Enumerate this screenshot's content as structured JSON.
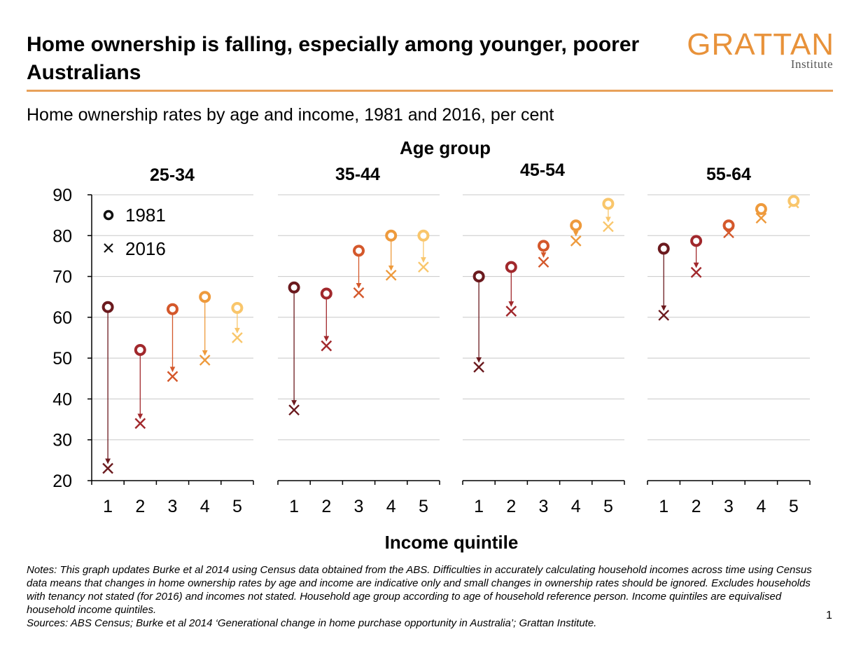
{
  "title": "Home ownership is falling, especially among younger, poorer Australians",
  "logo": {
    "main": "GRATTAN",
    "sub": "Institute"
  },
  "subtitle": "Home ownership rates by age and income, 1981 and 2016, per cent",
  "notes": [
    "Notes: This graph updates Burke et al 2014 using Census data obtained from the ABS. Difficulties in accurately calculating household incomes across time using Census data means that changes in home ownership rates by age and income are indicative only and small changes in ownership rates should be ignored. Excludes households with tenancy not stated (for 2016) and incomes not stated. Household age group according to age of household reference person. Income quintiles are equivalised household income quintiles.",
    "Sources: ABS Census; Burke et al 2014 ‘Generational change in home purchase opportunity in Australia’; Grattan Institute."
  ],
  "page_number": "1",
  "colors": {
    "q1": "#6B1A1E",
    "q2": "#A1282C",
    "q3": "#D4582B",
    "q4": "#EE9A3C",
    "q5": "#F9C66B",
    "grid": "#C8C8C8",
    "rule": "#E8A15A",
    "logo": "#E8923A"
  },
  "chart_data": {
    "type": "scatter",
    "facet_title": "Age group",
    "xlabel": "Income quintile",
    "ylabel": "",
    "ylim": [
      20,
      90
    ],
    "yticks": [
      20,
      30,
      40,
      50,
      60,
      70,
      80,
      90
    ],
    "categories": [
      "1",
      "2",
      "3",
      "4",
      "5"
    ],
    "legend": {
      "placement": "top-left",
      "items": [
        {
          "marker": "circle",
          "label": "1981"
        },
        {
          "marker": "cross",
          "label": "2016"
        }
      ]
    },
    "grid": true,
    "panels": [
      {
        "name": "25-34",
        "series": [
          {
            "name": "1981",
            "values": [
              62.5,
              52,
              62,
              65,
              62.3
            ]
          },
          {
            "name": "2016",
            "values": [
              23,
              34,
              45.5,
              49.5,
              55
            ]
          }
        ]
      },
      {
        "name": "35-44",
        "series": [
          {
            "name": "1981",
            "values": [
              67.3,
              65.8,
              76.3,
              80,
              80
            ]
          },
          {
            "name": "2016",
            "values": [
              37.3,
              53,
              66,
              70.3,
              72.3
            ]
          }
        ]
      },
      {
        "name": "45-54",
        "series": [
          {
            "name": "1981",
            "values": [
              70,
              72.3,
              77.5,
              82.5,
              87.8
            ]
          },
          {
            "name": "2016",
            "values": [
              47.8,
              61.5,
              73.5,
              78.7,
              82.2
            ]
          }
        ]
      },
      {
        "name": "55-64",
        "series": [
          {
            "name": "1981",
            "values": [
              76.8,
              78.7,
              82.5,
              86.5,
              88.5
            ]
          },
          {
            "name": "2016",
            "values": [
              60.5,
              71,
              80.7,
              84.3,
              88
            ]
          }
        ]
      }
    ]
  }
}
